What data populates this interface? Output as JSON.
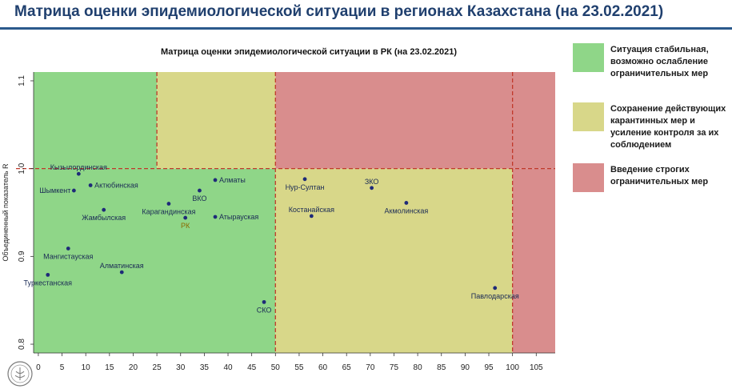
{
  "page": {
    "title": "Матрица оценки эпидемиологической ситуации в регионах Казахстана (на 23.02.2021)"
  },
  "legend": [
    {
      "color": "#8fd688",
      "text": "Ситуация стабильная, возможно ослабление ограничительных мер"
    },
    {
      "color": "#d8d789",
      "text": "Сохранение действующих карантинных мер и усиление контроля за их соблюдением"
    },
    {
      "color": "#d98d8d",
      "text": "Введение строгих ограничительных мер"
    }
  ],
  "chart_data": {
    "type": "scatter",
    "title": "Матрица оценки эпидемиологической ситуации в РК (на 23.02.2021)",
    "ylabel": "Объединенный показатель R",
    "xlabel": "",
    "xlim": [
      -1,
      109
    ],
    "ylim": [
      0.79,
      1.11
    ],
    "xticks": [
      0,
      5,
      10,
      15,
      20,
      25,
      30,
      35,
      40,
      45,
      50,
      55,
      60,
      65,
      70,
      75,
      80,
      85,
      90,
      95,
      100,
      105
    ],
    "yticks": [
      0.8,
      0.9,
      1.0,
      1.1
    ],
    "zones": [
      {
        "x": [
          -1,
          50
        ],
        "y": [
          0.79,
          1.0
        ],
        "color": "#8fd688"
      },
      {
        "x": [
          -1,
          25
        ],
        "y": [
          1.0,
          1.11
        ],
        "color": "#8fd688"
      },
      {
        "x": [
          25,
          50
        ],
        "y": [
          1.0,
          1.11
        ],
        "color": "#d8d789"
      },
      {
        "x": [
          50,
          100
        ],
        "y": [
          0.79,
          1.0
        ],
        "color": "#d8d789"
      },
      {
        "x": [
          50,
          109
        ],
        "y": [
          1.0,
          1.11
        ],
        "color": "#d98d8d"
      },
      {
        "x": [
          100,
          109
        ],
        "y": [
          0.79,
          1.0
        ],
        "color": "#d98d8d"
      }
    ],
    "threshold_lines": {
      "x": [
        25,
        50,
        100
      ],
      "y": [
        1.0
      ]
    },
    "points": [
      {
        "name": "Кызылординская",
        "x": 8.5,
        "y": 0.994,
        "label_pos": "top"
      },
      {
        "name": "Шымкент",
        "x": 7.5,
        "y": 0.975,
        "label_pos": "left"
      },
      {
        "name": "Актюбинская",
        "x": 11.0,
        "y": 0.981,
        "label_pos": "right"
      },
      {
        "name": "Жамбылская",
        "x": 13.8,
        "y": 0.953,
        "label_pos": "bottom"
      },
      {
        "name": "Мангистауская",
        "x": 6.3,
        "y": 0.909,
        "label_pos": "bottom"
      },
      {
        "name": "Туркестанская",
        "x": 2.0,
        "y": 0.879,
        "label_pos": "bottom"
      },
      {
        "name": "Алматинская",
        "x": 17.6,
        "y": 0.882,
        "label_pos": "top"
      },
      {
        "name": "Карагандинская",
        "x": 27.5,
        "y": 0.96,
        "label_pos": "bottom"
      },
      {
        "name": "РК",
        "x": 31.0,
        "y": 0.944,
        "label_pos": "bottom",
        "color": "#8b6a00"
      },
      {
        "name": "ВКО",
        "x": 34.0,
        "y": 0.975,
        "label_pos": "bottom"
      },
      {
        "name": "Алматы",
        "x": 37.3,
        "y": 0.987,
        "label_pos": "right"
      },
      {
        "name": "Атырауская",
        "x": 37.3,
        "y": 0.945,
        "label_pos": "right"
      },
      {
        "name": "СКО",
        "x": 47.6,
        "y": 0.848,
        "label_pos": "bottom"
      },
      {
        "name": "Нур-Султан",
        "x": 56.2,
        "y": 0.988,
        "label_pos": "bottom"
      },
      {
        "name": "Костанайская",
        "x": 57.6,
        "y": 0.946,
        "label_pos": "top"
      },
      {
        "name": "ЗКО",
        "x": 70.3,
        "y": 0.978,
        "label_pos": "top"
      },
      {
        "name": "Акмолинская",
        "x": 77.6,
        "y": 0.961,
        "label_pos": "bottom"
      },
      {
        "name": "Павлодарская",
        "x": 96.3,
        "y": 0.864,
        "label_pos": "bottom"
      }
    ]
  }
}
